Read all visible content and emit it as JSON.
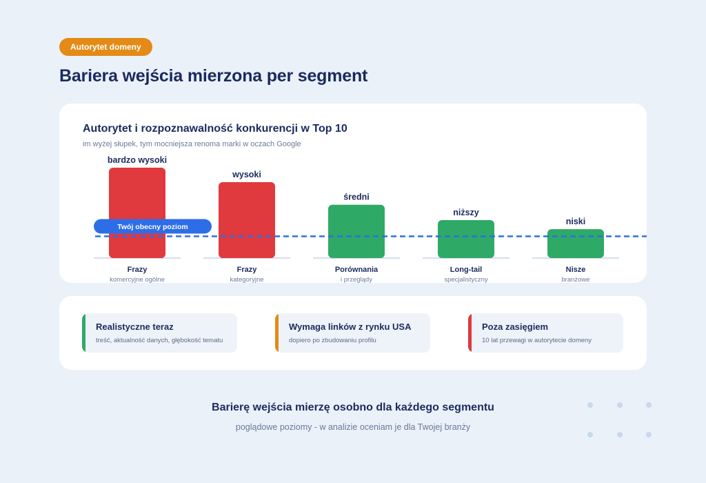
{
  "badge": "Autorytet domeny",
  "page_title": "Bariera wejścia mierzona per segment",
  "chart_data": {
    "type": "bar",
    "title": "Autorytet i rozpoznawalność konkurencji w Top 10",
    "subtitle": "im wyżej słupek, tym mocniejsza renoma marki w oczach Google",
    "categories": [
      {
        "name": "Frazy",
        "sub": "komercyjne ogólne"
      },
      {
        "name": "Frazy",
        "sub": "kategoryjne"
      },
      {
        "name": "Porównania",
        "sub": "i przeglądy"
      },
      {
        "name": "Long-tail",
        "sub": "specjalistyczny"
      },
      {
        "name": "Nisze",
        "sub": "branżowe"
      }
    ],
    "values": [
      100,
      84,
      59,
      42,
      32
    ],
    "value_labels": [
      "bardzo wysoki",
      "wysoki",
      "średni",
      "niższy",
      "niski"
    ],
    "bar_colors": [
      "#e0393e",
      "#e0393e",
      "#2eaa66",
      "#2eaa66",
      "#2eaa66"
    ],
    "reference_line": {
      "value": 24,
      "label": "Twój obecny poziom",
      "color": "#2e6de8"
    },
    "ylim": [
      0,
      100
    ],
    "grid": false
  },
  "legend": [
    {
      "title": "Realistyczne teraz",
      "desc": "treść, aktualność danych, głębokość tematu",
      "color": "#2eaa66"
    },
    {
      "title": "Wymaga linków z rynku USA",
      "desc": "dopiero po zbudowaniu profilu",
      "color": "#e38b16"
    },
    {
      "title": "Poza zasięgiem",
      "desc": "10 lat przewagi w autorytecie domeny",
      "color": "#e0393e"
    }
  ],
  "footer": {
    "title": "Barierę wejścia mierzę osobno dla każdego segmentu",
    "subtitle": "poglądowe poziomy - w analizie oceniam je dla Twojej branży"
  }
}
